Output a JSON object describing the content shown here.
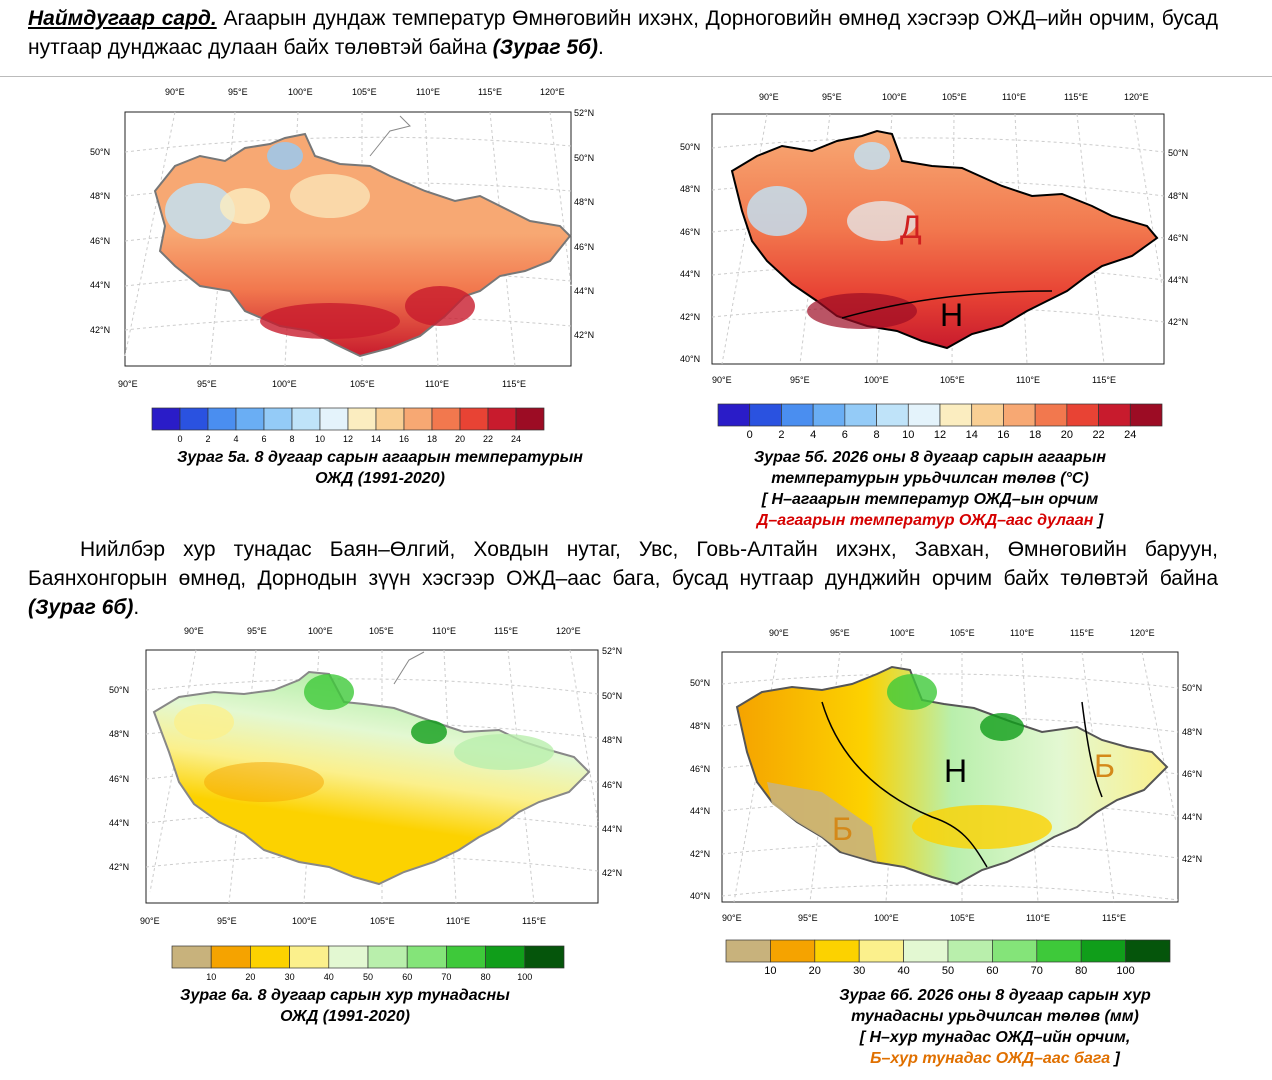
{
  "top_paragraph": {
    "heading": "Наймдугаар сард.",
    "text": " Агаарын дундаж температур Өмнөговийн ихэнх, Дорноговийн өмнөд хэсгээр ОЖД–ийн орчим, бусад нутгаар дунджаас дулаан байх төлөвтэй байна ",
    "ref": "(Зураг 5б)",
    "end": "."
  },
  "mid_paragraph": {
    "text": "Нийлбэр хур тунадас Баян–Өлгий, Ховдын нутаг, Увс, Говь-Алтайн ихэнх, Завхан, Өмнөговийн баруун, Баянхонгорын өмнөд, Дорнодын зүүн хэсгээр ОЖД–аас бага, бусад нутгаар дунджийн орчим байх төлөвтэй байна ",
    "ref": "(Зураг 6б)",
    "end": "."
  },
  "axes": {
    "lon_top": [
      "90°E",
      "95°E",
      "100°E",
      "105°E",
      "110°E",
      "115°E",
      "120°E"
    ],
    "lon_bottom": [
      "90°E",
      "95°E",
      "100°E",
      "105°E",
      "110°E",
      "115°E"
    ],
    "lat_left": [
      "50°N",
      "48°N",
      "46°N",
      "44°N",
      "42°N"
    ],
    "lat_left_b": [
      "50°N",
      "48°N",
      "46°N",
      "44°N",
      "42°N",
      "40°N"
    ],
    "lat_right": [
      "52°N",
      "50°N",
      "48°N",
      "46°N",
      "44°N",
      "42°N"
    ],
    "lat_right_b": [
      "50°N",
      "48°N",
      "46°N",
      "44°N",
      "42°N"
    ]
  },
  "temp_colorbar": {
    "labels": [
      "0",
      "2",
      "4",
      "6",
      "8",
      "10",
      "12",
      "14",
      "16",
      "18",
      "20",
      "22",
      "24"
    ],
    "colors": [
      "#2a1cc8",
      "#2a52e0",
      "#4a8ef0",
      "#6aaef4",
      "#94cbf7",
      "#bfe3f9",
      "#e4f3fb",
      "#fbedc0",
      "#f9cf94",
      "#f7a873",
      "#f2784e",
      "#e84334",
      "#c81b2d",
      "#9c0c24"
    ]
  },
  "precip_colorbar": {
    "labels": [
      "10",
      "20",
      "30",
      "40",
      "50",
      "60",
      "70",
      "80",
      "100"
    ],
    "colors": [
      "#c8b27c",
      "#f5a300",
      "#fcd200",
      "#fbf08c",
      "#e3f8d2",
      "#b9efac",
      "#84e479",
      "#3ec93a",
      "#109e1a",
      "#05550b"
    ]
  },
  "captions": {
    "fig5a_line1": "Зураг 5а. 8 дугаар сарын агаарын температурын",
    "fig5a_line2": "ОЖД (1991-2020)",
    "fig5b_line1": "Зураг 5б. 2026 оны 8 дугаар сарын агаарын",
    "fig5b_line2": "температурын урьдчилсан төлөв (°С)",
    "fig5b_line3": "[ Н–агаарын температур ОЖД–ын орчим",
    "fig5b_line4_red": "Д–агаарын температур ОЖД–аас дулаан",
    "fig5b_line4_end": " ]",
    "fig6a_line1": "Зураг 6а. 8 дугаар сарын хур тунадасны",
    "fig6a_line2": "ОЖД (1991-2020)",
    "fig6b_line1": "Зураг 6б. 2026 оны 8 дугаар сарын хур",
    "fig6b_line2": "тунадасны урьдчилсан төлөв (мм)",
    "fig6b_line3": "[ Н–хур тунадас ОЖД–ийн орчим,",
    "fig6b_line4_orange": "Б–хур тунадас ОЖД–аас бага",
    "fig6b_line4_end": " ]"
  },
  "map_labels": {
    "fig5b_warm": "Д",
    "fig5b_normal": "Н",
    "fig6b_normal": "Н",
    "fig6b_below_west": "Б",
    "fig6b_below_east": "Б"
  },
  "label_colors": {
    "warm": "#d02020",
    "below": "#d4891a",
    "normal": "#000000"
  }
}
